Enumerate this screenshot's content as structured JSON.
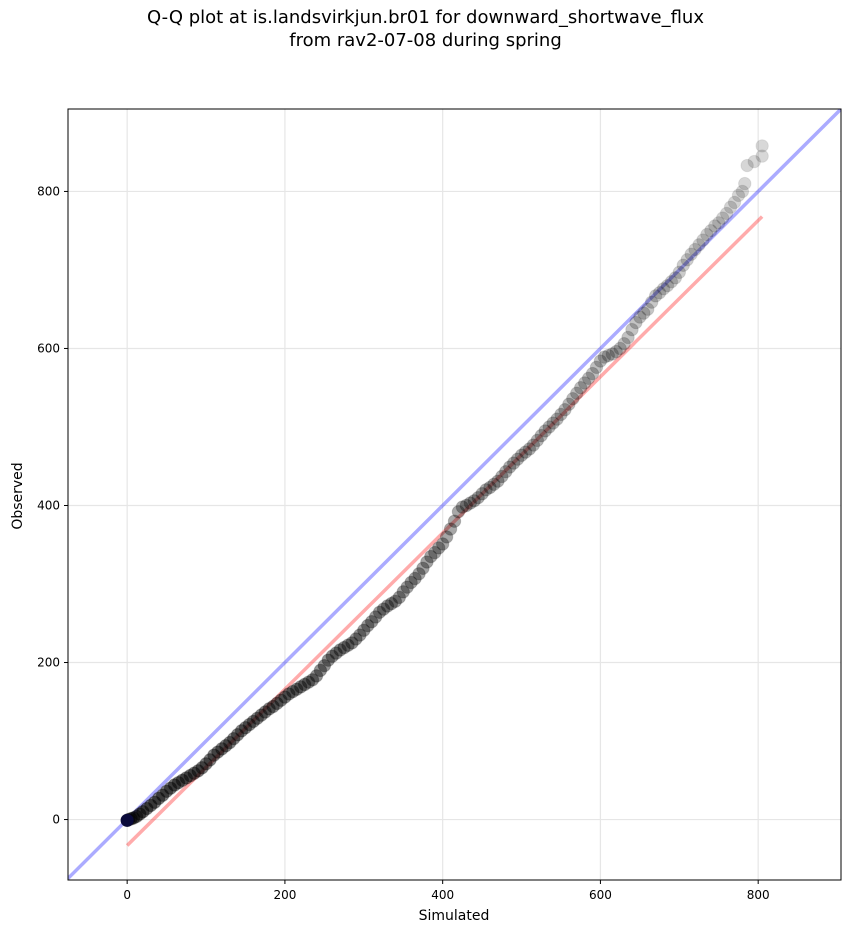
{
  "chart_data": {
    "type": "scatter",
    "title_lines": [
      "Q-Q plot at is.landsvirkjun.br01 for downward_shortwave_flux",
      "from rav2-07-08 during spring"
    ],
    "xlabel": "Simulated",
    "ylabel": "Observed",
    "xlim": [
      -75,
      905
    ],
    "ylim": [
      -77,
      905
    ],
    "xticks": [
      0,
      200,
      400,
      600,
      800
    ],
    "yticks": [
      0,
      200,
      400,
      600,
      800
    ],
    "grid": true,
    "reference_line": {
      "name": "1:1",
      "color": "#0000ff",
      "from": [
        -75,
        -75
      ],
      "to": [
        905,
        905
      ]
    },
    "fit_line": {
      "color": "#ff0000",
      "from": [
        0,
        -33
      ],
      "to": [
        805,
        768
      ]
    },
    "quantiles": [
      [
        0,
        -1
      ],
      [
        2,
        0
      ],
      [
        5,
        1
      ],
      [
        8,
        2
      ],
      [
        12,
        4
      ],
      [
        16,
        7
      ],
      [
        20,
        10
      ],
      [
        25,
        14
      ],
      [
        30,
        18
      ],
      [
        35,
        22
      ],
      [
        40,
        27
      ],
      [
        45,
        31
      ],
      [
        50,
        36
      ],
      [
        55,
        40
      ],
      [
        60,
        44
      ],
      [
        65,
        47
      ],
      [
        70,
        50
      ],
      [
        75,
        53
      ],
      [
        80,
        56
      ],
      [
        85,
        59
      ],
      [
        90,
        62
      ],
      [
        95,
        66
      ],
      [
        100,
        71
      ],
      [
        105,
        76
      ],
      [
        110,
        82
      ],
      [
        115,
        86
      ],
      [
        120,
        90
      ],
      [
        125,
        94
      ],
      [
        130,
        98
      ],
      [
        135,
        103
      ],
      [
        140,
        108
      ],
      [
        145,
        113
      ],
      [
        150,
        117
      ],
      [
        155,
        121
      ],
      [
        160,
        125
      ],
      [
        165,
        129
      ],
      [
        170,
        133
      ],
      [
        175,
        137
      ],
      [
        180,
        141
      ],
      [
        185,
        144
      ],
      [
        190,
        148
      ],
      [
        195,
        152
      ],
      [
        200,
        156
      ],
      [
        205,
        160
      ],
      [
        210,
        163
      ],
      [
        215,
        166
      ],
      [
        220,
        169
      ],
      [
        225,
        172
      ],
      [
        230,
        175
      ],
      [
        235,
        178
      ],
      [
        240,
        183
      ],
      [
        245,
        190
      ],
      [
        250,
        196
      ],
      [
        255,
        203
      ],
      [
        260,
        208
      ],
      [
        265,
        212
      ],
      [
        270,
        216
      ],
      [
        275,
        219
      ],
      [
        280,
        222
      ],
      [
        285,
        225
      ],
      [
        290,
        230
      ],
      [
        295,
        235
      ],
      [
        300,
        241
      ],
      [
        305,
        247
      ],
      [
        310,
        252
      ],
      [
        315,
        258
      ],
      [
        320,
        264
      ],
      [
        325,
        268
      ],
      [
        330,
        272
      ],
      [
        335,
        275
      ],
      [
        340,
        278
      ],
      [
        345,
        283
      ],
      [
        350,
        290
      ],
      [
        355,
        296
      ],
      [
        360,
        302
      ],
      [
        365,
        307
      ],
      [
        370,
        313
      ],
      [
        375,
        320
      ],
      [
        380,
        328
      ],
      [
        385,
        335
      ],
      [
        390,
        340
      ],
      [
        395,
        346
      ],
      [
        400,
        351
      ],
      [
        405,
        360
      ],
      [
        410,
        370
      ],
      [
        415,
        380
      ],
      [
        420,
        392
      ],
      [
        425,
        398
      ],
      [
        430,
        400
      ],
      [
        435,
        403
      ],
      [
        440,
        406
      ],
      [
        445,
        410
      ],
      [
        450,
        415
      ],
      [
        455,
        420
      ],
      [
        460,
        423
      ],
      [
        465,
        427
      ],
      [
        470,
        431
      ],
      [
        475,
        437
      ],
      [
        480,
        443
      ],
      [
        485,
        449
      ],
      [
        490,
        454
      ],
      [
        495,
        459
      ],
      [
        500,
        464
      ],
      [
        505,
        468
      ],
      [
        510,
        472
      ],
      [
        515,
        477
      ],
      [
        520,
        483
      ],
      [
        525,
        489
      ],
      [
        530,
        495
      ],
      [
        535,
        500
      ],
      [
        540,
        505
      ],
      [
        545,
        510
      ],
      [
        550,
        516
      ],
      [
        555,
        522
      ],
      [
        560,
        529
      ],
      [
        565,
        536
      ],
      [
        570,
        543
      ],
      [
        575,
        550
      ],
      [
        580,
        556
      ],
      [
        585,
        562
      ],
      [
        590,
        568
      ],
      [
        595,
        576
      ],
      [
        600,
        584
      ],
      [
        605,
        589
      ],
      [
        610,
        591
      ],
      [
        615,
        593
      ],
      [
        620,
        596
      ],
      [
        625,
        600
      ],
      [
        630,
        606
      ],
      [
        635,
        614
      ],
      [
        640,
        624
      ],
      [
        645,
        633
      ],
      [
        650,
        640
      ],
      [
        655,
        645
      ],
      [
        660,
        650
      ],
      [
        665,
        659
      ],
      [
        670,
        667
      ],
      [
        675,
        671
      ],
      [
        680,
        676
      ],
      [
        685,
        680
      ],
      [
        690,
        685
      ],
      [
        695,
        690
      ],
      [
        700,
        697
      ],
      [
        705,
        706
      ],
      [
        710,
        713
      ],
      [
        715,
        720
      ],
      [
        720,
        726
      ],
      [
        725,
        732
      ],
      [
        730,
        738
      ],
      [
        735,
        745
      ],
      [
        740,
        750
      ],
      [
        745,
        756
      ],
      [
        750,
        760
      ],
      [
        755,
        766
      ],
      [
        760,
        772
      ],
      [
        765,
        780
      ],
      [
        770,
        786
      ],
      [
        775,
        795
      ],
      [
        780,
        800
      ],
      [
        783,
        810
      ],
      [
        786,
        833
      ],
      [
        795,
        838
      ],
      [
        805,
        845
      ],
      [
        805,
        858
      ]
    ]
  }
}
